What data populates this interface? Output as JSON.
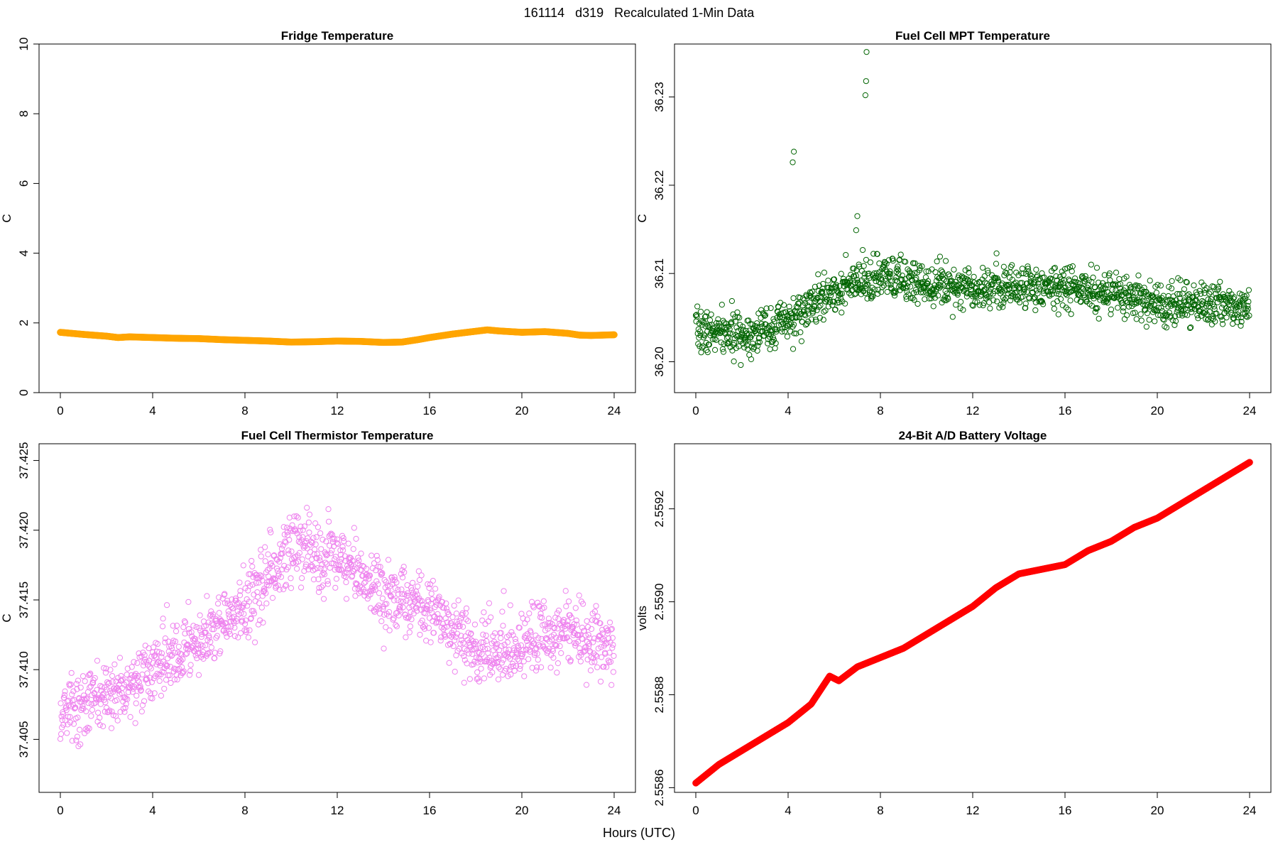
{
  "suptitle": "161114   d319   Recalculated 1-Min Data",
  "xlabel": "Hours (UTC)",
  "chart_data": [
    {
      "type": "scatter",
      "title": "Fridge Temperature",
      "ylabel": "C",
      "xlim": [
        0,
        24
      ],
      "ylim": [
        0,
        10
      ],
      "xticks": [
        0,
        4,
        8,
        12,
        16,
        20,
        24
      ],
      "yticks": [
        0,
        2,
        4,
        6,
        8,
        10
      ],
      "ytick_labels": [
        "0",
        "2",
        "4",
        "6",
        "8",
        "10"
      ],
      "color": "#FFA500",
      "marker": "filled",
      "series": [
        {
          "name": "Fridge Temperature",
          "x": [
            0,
            1,
            2,
            2.5,
            3,
            4,
            5,
            6,
            7,
            8,
            9,
            10,
            11,
            12,
            13,
            14,
            14.8,
            15.5,
            16,
            17,
            18,
            18.5,
            19,
            20,
            21,
            22,
            22.5,
            23,
            24
          ],
          "y": [
            1.73,
            1.67,
            1.62,
            1.58,
            1.6,
            1.58,
            1.56,
            1.55,
            1.52,
            1.5,
            1.48,
            1.45,
            1.46,
            1.48,
            1.47,
            1.44,
            1.45,
            1.52,
            1.58,
            1.68,
            1.76,
            1.8,
            1.77,
            1.73,
            1.75,
            1.7,
            1.65,
            1.64,
            1.66
          ]
        }
      ]
    },
    {
      "type": "scatter",
      "title": "Fuel Cell MPT Temperature",
      "ylabel": "C",
      "xlim": [
        0,
        24
      ],
      "ylim": [
        36.1965,
        36.236
      ],
      "xticks": [
        0,
        4,
        8,
        12,
        16,
        20,
        24
      ],
      "yticks": [
        36.2,
        36.21,
        36.22,
        36.23
      ],
      "ytick_labels": [
        "36.20",
        "36.21",
        "36.22",
        "36.23"
      ],
      "color": "#006400",
      "marker": "open",
      "noise": 0.0022,
      "seed": 7,
      "series": [
        {
          "name": "Fuel Cell MPT Temperature",
          "x": [
            0,
            2,
            4,
            6,
            8,
            12,
            16,
            20,
            24
          ],
          "y": [
            36.2035,
            36.203,
            36.2045,
            36.208,
            36.2095,
            36.2085,
            36.2085,
            36.2065,
            36.2065
          ],
          "outliers": [
            [
              4.2,
              36.2226
            ],
            [
              4.25,
              36.2238
            ],
            [
              7.35,
              36.2302
            ],
            [
              7.38,
              36.2318
            ],
            [
              7.4,
              36.2351
            ],
            [
              6.95,
              36.2149
            ],
            [
              7.0,
              36.2165
            ]
          ]
        }
      ]
    },
    {
      "type": "scatter",
      "title": "Fuel Cell Thermistor Temperature",
      "ylabel": "C",
      "xlim": [
        0,
        24
      ],
      "ylim": [
        37.4012,
        37.4262
      ],
      "xticks": [
        0,
        4,
        8,
        12,
        16,
        20,
        24
      ],
      "yticks": [
        37.405,
        37.41,
        37.415,
        37.42,
        37.425
      ],
      "ytick_labels": [
        "37.405",
        "37.410",
        "37.415",
        "37.420",
        "37.425"
      ],
      "color": "#EE82EE",
      "marker": "open",
      "noise": 0.0022,
      "seed": 13,
      "series": [
        {
          "name": "Fuel Cell Thermistor Temperature",
          "x": [
            0,
            2,
            4,
            6,
            8,
            10,
            12,
            14,
            16,
            18,
            20,
            22,
            24
          ],
          "y": [
            37.407,
            37.408,
            37.41,
            37.412,
            37.4145,
            37.419,
            37.418,
            37.4155,
            37.4145,
            37.4115,
            37.4115,
            37.413,
            37.4115
          ]
        }
      ]
    },
    {
      "type": "scatter",
      "title": "24-Bit A/D Battery Voltage",
      "ylabel": "volts",
      "xlim": [
        0,
        24
      ],
      "ylim": [
        2.55859,
        2.55934
      ],
      "xticks": [
        0,
        4,
        8,
        12,
        16,
        20,
        24
      ],
      "yticks": [
        2.5586,
        2.5588,
        2.559,
        2.5592
      ],
      "ytick_labels": [
        "2.5586",
        "2.5588",
        "2.5590",
        "2.5592"
      ],
      "color": "#FF0000",
      "marker": "filled",
      "series": [
        {
          "name": "24-Bit A/D Battery Voltage",
          "x": [
            0,
            1,
            2,
            3,
            4,
            5,
            5.8,
            6.2,
            7,
            8,
            9,
            10,
            11,
            12,
            13,
            14,
            15,
            16,
            17,
            18,
            19,
            20,
            21,
            22,
            23,
            24
          ],
          "y": [
            2.55861,
            2.55865,
            2.55868,
            2.55871,
            2.55874,
            2.55878,
            2.55884,
            2.55883,
            2.55886,
            2.55888,
            2.5589,
            2.55893,
            2.55896,
            2.55899,
            2.55903,
            2.55906,
            2.55907,
            2.55908,
            2.55911,
            2.55913,
            2.55916,
            2.55918,
            2.55921,
            2.55924,
            2.55927,
            2.5593
          ]
        }
      ]
    }
  ]
}
